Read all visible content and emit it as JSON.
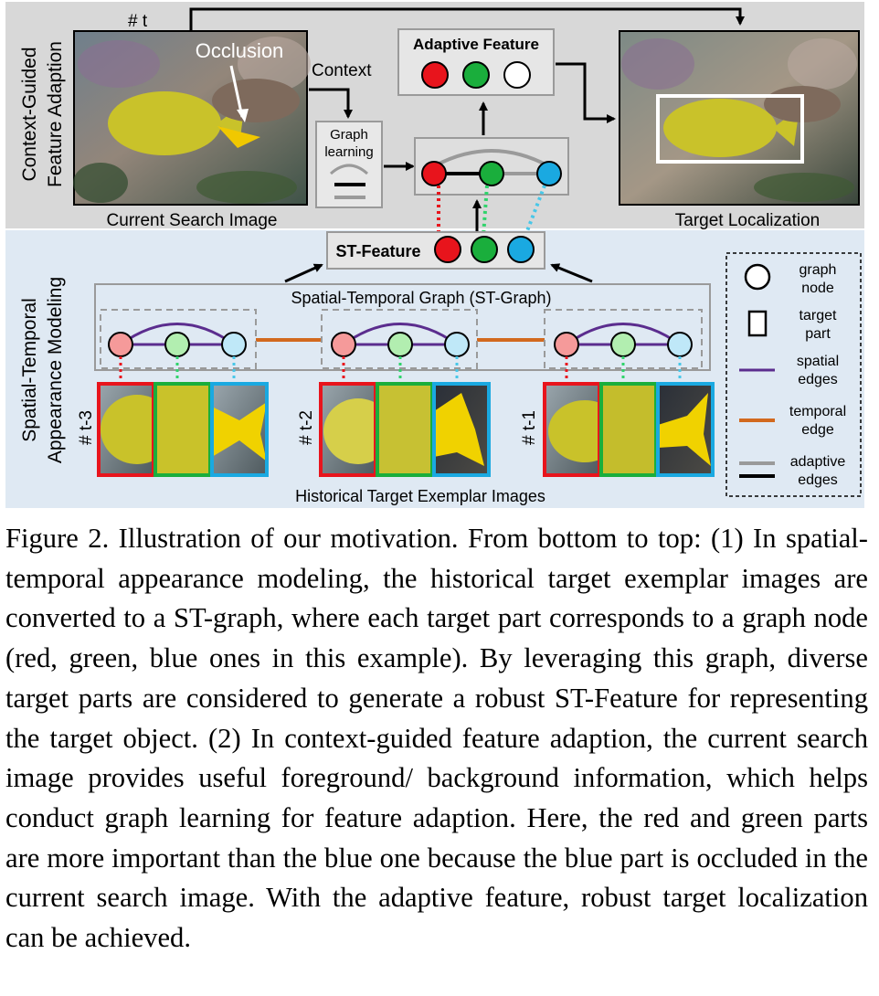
{
  "figure": {
    "top_panel": {
      "side_label_line1": "Context-Guided",
      "side_label_line2": "Feature Adaption",
      "frame_tag": "# t",
      "occlusion_label": "Occlusion",
      "search_image_caption": "Current Search Image",
      "context_label": "Context",
      "graph_learning_line1": "Graph",
      "graph_learning_line2": "learning",
      "adaptive_feature_title": "Adaptive Feature",
      "target_localization_caption": "Target Localization"
    },
    "bottom_panel": {
      "side_label_line1": "Spatial-Temporal",
      "side_label_line2": "Appearance Modeling",
      "st_feature_label": "ST-Feature",
      "st_graph_label": "Spatial-Temporal Graph (ST-Graph)",
      "frame_tags": [
        "# t-3",
        "# t-2",
        "# t-1"
      ],
      "exemplar_caption": "Historical Target Exemplar Images"
    },
    "legend": {
      "graph_node_line1": "graph",
      "graph_node_line2": "node",
      "target_part_line1": "target",
      "target_part_line2": "part",
      "spatial_line1": "spatial",
      "spatial_line2": "edges",
      "temporal_line1": "temporal",
      "temporal_line2": "edge",
      "adaptive_line1": "adaptive",
      "adaptive_line2": "edges"
    },
    "colors": {
      "red": "#e8141c",
      "green": "#1aae3c",
      "blue": "#1aa9e1",
      "light_red": "#f59a9a",
      "light_green": "#b2eeb0",
      "light_blue": "#bfe8f8",
      "purple": "#5b2d8e",
      "orange": "#d2691e",
      "top_bg": "#d8d8d8",
      "bottom_bg": "#dfe9f3"
    }
  },
  "caption": {
    "text": "Figure 2. Illustration of our motivation. From bottom to top: (1) In spatial-temporal appearance modeling, the historical target exemplar images are converted to a ST-graph, where each target part corresponds to a graph node (red, green, blue ones in this example). By leveraging this graph, diverse target parts are considered to generate a robust ST-Feature for representing the target object. (2) In context-guided feature adaption, the current search image provides useful foreground/ background information, which helps conduct graph learning for feature adaption. Here, the red and green parts are more important than the blue one because the blue part is occluded in the current search image. With the adaptive feature, robust target localization can be achieved."
  }
}
